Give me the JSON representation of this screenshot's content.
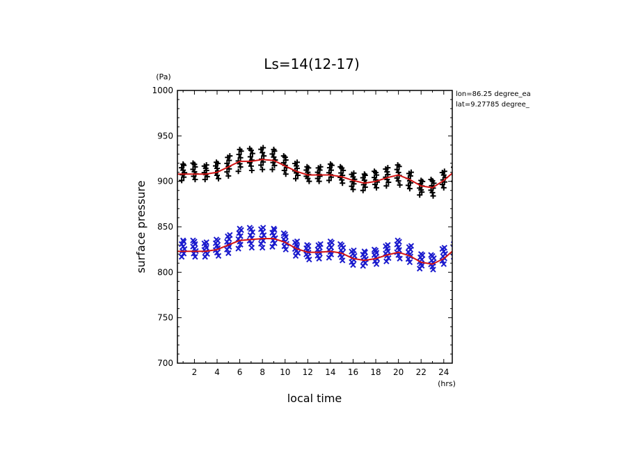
{
  "chart_data": {
    "type": "scatter",
    "title": "Ls=14(12-17)",
    "xlabel": "local time",
    "ylabel": "surface pressure",
    "xunit": "(hrs)",
    "yunit": "(Pa)",
    "xlim": [
      0.5,
      24.75
    ],
    "ylim": [
      700,
      1000
    ],
    "xticks": [
      2,
      4,
      6,
      8,
      10,
      12,
      14,
      16,
      18,
      20,
      22,
      24
    ],
    "yticks": [
      700,
      750,
      800,
      850,
      900,
      950,
      1000
    ],
    "annotations": [
      "lon=86.25 degree_ea",
      "lat=9.27785 degree_"
    ],
    "grid": false,
    "series": [
      {
        "marker": "plus",
        "color": "#000000",
        "hours": [
          1,
          2,
          3,
          4,
          5,
          6,
          7,
          8,
          9,
          10,
          11,
          12,
          13,
          14,
          15,
          16,
          17,
          18,
          19,
          20,
          21,
          22,
          23,
          24,
          25
        ],
        "center": [
          910,
          911,
          910,
          912,
          917,
          923,
          924,
          925,
          924,
          918,
          912,
          908,
          908,
          910,
          907,
          900,
          899,
          902,
          905,
          907,
          901,
          893,
          893,
          902,
          910
        ],
        "spread": [
          9,
          9,
          8,
          9,
          11,
          12,
          12,
          12,
          11,
          10,
          9,
          8,
          8,
          9,
          9,
          9,
          9,
          9,
          10,
          11,
          9,
          8,
          9,
          9,
          10
        ]
      },
      {
        "marker": "cross",
        "color": "#1a1acd",
        "hours": [
          1,
          2,
          3,
          4,
          5,
          6,
          7,
          8,
          9,
          10,
          11,
          12,
          13,
          14,
          15,
          16,
          17,
          18,
          19,
          20,
          21,
          22,
          23,
          24,
          25
        ],
        "center": [
          826,
          826,
          825,
          827,
          831,
          837,
          838,
          838,
          838,
          834,
          826,
          822,
          823,
          825,
          822,
          816,
          815,
          817,
          821,
          825,
          820,
          812,
          811,
          818,
          826
        ],
        "spread": [
          9,
          9,
          8,
          9,
          10,
          11,
          11,
          11,
          10,
          9,
          8,
          8,
          8,
          9,
          9,
          8,
          8,
          8,
          9,
          10,
          9,
          8,
          8,
          9,
          9
        ]
      }
    ],
    "fit_lines": [
      {
        "color": "#d21414",
        "x": [
          0.5,
          1,
          2,
          3,
          4,
          5,
          6,
          7,
          8,
          9,
          10,
          11,
          12,
          13,
          14,
          15,
          16,
          17,
          18,
          19,
          20,
          21,
          22,
          23,
          24,
          24.75
        ],
        "y": [
          908,
          908,
          908,
          908,
          910,
          916,
          922,
          922,
          924,
          923,
          917,
          911,
          907,
          907,
          907,
          905,
          901,
          898,
          900,
          904,
          907,
          902,
          895,
          893,
          901,
          909
        ]
      },
      {
        "color": "#d21414",
        "x": [
          0.5,
          1,
          2,
          3,
          4,
          5,
          6,
          7,
          8,
          9,
          10,
          11,
          12,
          13,
          14,
          15,
          16,
          17,
          18,
          19,
          20,
          21,
          22,
          23,
          24,
          24.75
        ],
        "y": [
          823,
          823,
          823,
          823,
          825,
          830,
          835,
          836,
          837,
          837,
          833,
          826,
          822,
          822,
          823,
          821,
          815,
          813,
          815,
          819,
          822,
          818,
          811,
          809,
          815,
          823
        ]
      }
    ]
  }
}
